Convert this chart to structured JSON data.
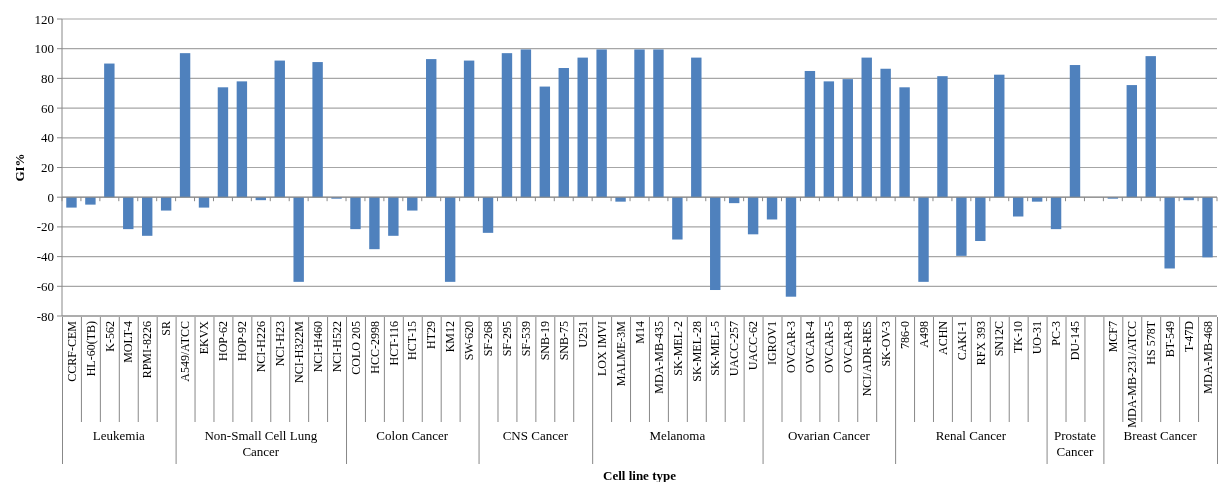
{
  "chart_data": {
    "type": "bar",
    "xlabel": "Cell line type",
    "ylabel": "GI%",
    "color": "#4f81bd",
    "grid": "y",
    "categories": [
      "CCRF-CEM",
      "HL-60(TB)",
      "K-562",
      "MOLT-4",
      "RPMI-8226",
      "SR",
      "A549/ATCC",
      "EKVX",
      "HOP-62",
      "HOP-92",
      "NCI-H226",
      "NCI-H23",
      "NCI-H322M",
      "NCI-H460",
      "NCI-H522",
      "COLO 205",
      "HCC-2998",
      "HCT-116",
      "HCT-15",
      "HT29",
      "KM12",
      "SW-620",
      "SF-268",
      "SF-295",
      "SF-539",
      "SNB-19",
      "SNB-75",
      "U251",
      "LOX IMVI",
      "MALME-3M",
      "M14",
      "MDA-MB-435",
      "SK-MEL-2",
      "SK-MEL-28",
      "SK-MEL-5",
      "UACC-257",
      "UACC-62",
      "IGROV1",
      "OVCAR-3",
      "OVCAR-4",
      "OVCAR-5",
      "OVCAR-8",
      "NCI/ADR-RES",
      "SK-OV-3",
      "786-0",
      "A498",
      "ACHN",
      "CAKI-1",
      "RFX 393",
      "SN12C",
      "TK-10",
      "UO-31",
      "PC-3",
      "DU-145",
      null,
      "MCF7",
      "MDA-MB-231/ATCC",
      "HS 578T",
      "BT-549",
      "T-47D",
      "MDA-MB-468"
    ],
    "values": [
      -7,
      -5,
      90,
      -21.5,
      -26,
      -9,
      97,
      -7,
      74,
      78,
      -2,
      92,
      -57,
      91,
      -1,
      -21.5,
      -35,
      -26,
      -9,
      93,
      -57,
      92,
      -24,
      97,
      99.5,
      74.5,
      87,
      94,
      99.5,
      -3,
      99.5,
      99.5,
      -28.5,
      94,
      -62.5,
      -4,
      -25,
      -15,
      -67,
      85,
      78,
      79.5,
      94,
      86.5,
      74,
      -57,
      81.5,
      -39.5,
      -29.5,
      82.5,
      -13,
      -3,
      -21.5,
      89,
      null,
      -1,
      75.5,
      95,
      -48,
      -2,
      -40.5
    ],
    "ylim": [
      -80,
      120
    ],
    "yticks": [
      -80,
      -60,
      -40,
      -20,
      0,
      20,
      40,
      60,
      80,
      100,
      120
    ],
    "annotations": [
      "Leukemia",
      "Non-Small Cell Lung Cancer",
      "Colon Cancer",
      "CNS Cancer",
      "Melanoma",
      "Ovarian Cancer",
      "Renal Cancer",
      "Prostate Cancer",
      "Breast Cancer"
    ]
  }
}
